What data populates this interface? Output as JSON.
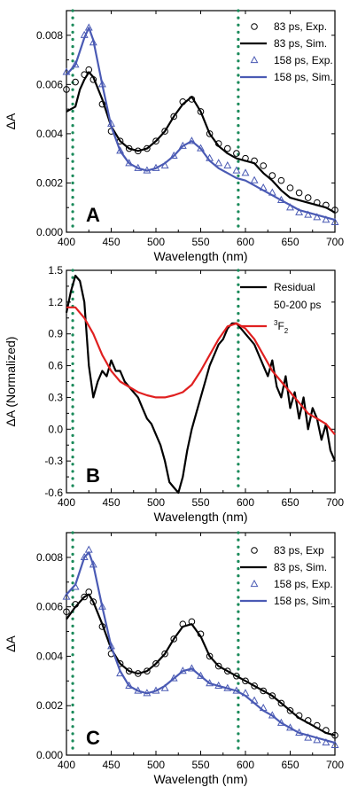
{
  "chart_data": [
    {
      "panel": "A",
      "type": "line",
      "xlabel": "Wavelength (nm)",
      "ylabel": "ΔA",
      "xlim": [
        400,
        700
      ],
      "ylim": [
        0.0,
        0.009
      ],
      "xticks": [
        400,
        450,
        500,
        550,
        600,
        650,
        700
      ],
      "xtick_labels": [
        "400",
        "450",
        "500",
        "550",
        "600",
        "650",
        "700"
      ],
      "yticks": [
        0.0,
        0.002,
        0.004,
        0.006,
        0.008
      ],
      "ytick_labels": [
        "0.000",
        "0.002",
        "0.004",
        "0.006",
        "0.008"
      ],
      "vlines": [
        407,
        592
      ],
      "legend_position": "top-right",
      "series": [
        {
          "name": "83 ps, Exp.",
          "style": "marker-circle",
          "color": "#000000",
          "x": [
            400,
            410,
            420,
            425,
            430,
            440,
            450,
            460,
            470,
            480,
            490,
            500,
            510,
            520,
            530,
            540,
            550,
            560,
            570,
            580,
            590,
            600,
            610,
            620,
            630,
            640,
            650,
            660,
            670,
            680,
            690,
            700
          ],
          "y": [
            0.0058,
            0.0061,
            0.0064,
            0.0066,
            0.0062,
            0.0052,
            0.0041,
            0.0037,
            0.0034,
            0.0033,
            0.0034,
            0.0037,
            0.0041,
            0.0047,
            0.0053,
            0.0054,
            0.0049,
            0.004,
            0.0036,
            0.0034,
            0.0032,
            0.003,
            0.0029,
            0.0027,
            0.0023,
            0.0021,
            0.0018,
            0.0016,
            0.0014,
            0.0012,
            0.0011,
            0.0009
          ]
        },
        {
          "name": "83 ps, Sim.",
          "style": "line",
          "color": "#000000",
          "x": [
            400,
            410,
            415,
            420,
            425,
            430,
            440,
            450,
            460,
            470,
            480,
            490,
            500,
            510,
            520,
            530,
            540,
            550,
            560,
            570,
            580,
            590,
            600,
            610,
            620,
            630,
            640,
            650,
            660,
            670,
            680,
            690,
            700
          ],
          "y": [
            0.0049,
            0.0051,
            0.0058,
            0.0062,
            0.0065,
            0.0063,
            0.0054,
            0.0043,
            0.0037,
            0.0034,
            0.0033,
            0.0034,
            0.0037,
            0.0041,
            0.0047,
            0.0052,
            0.0055,
            0.0049,
            0.004,
            0.0035,
            0.0032,
            0.003,
            0.0029,
            0.0028,
            0.0024,
            0.0021,
            0.0017,
            0.0014,
            0.0013,
            0.0012,
            0.0011,
            0.001,
            0.0008
          ]
        },
        {
          "name": "158 ps, Exp.",
          "style": "marker-triangle",
          "color": "#4a5ab4",
          "x": [
            400,
            410,
            420,
            425,
            430,
            440,
            450,
            460,
            470,
            480,
            490,
            500,
            510,
            520,
            530,
            540,
            550,
            560,
            570,
            580,
            590,
            600,
            610,
            620,
            630,
            640,
            650,
            660,
            670,
            680,
            690,
            700
          ],
          "y": [
            0.0065,
            0.0068,
            0.008,
            0.0083,
            0.0077,
            0.006,
            0.0044,
            0.0033,
            0.0028,
            0.0026,
            0.0025,
            0.0026,
            0.0027,
            0.0031,
            0.0035,
            0.0037,
            0.0034,
            0.003,
            0.0028,
            0.0027,
            0.0025,
            0.0024,
            0.0021,
            0.0018,
            0.0016,
            0.0013,
            0.001,
            0.0008,
            0.0007,
            0.0006,
            0.0005,
            0.0004
          ]
        },
        {
          "name": "158 ps, Sim.",
          "style": "line",
          "color": "#4a5ab4",
          "x": [
            400,
            410,
            420,
            425,
            430,
            440,
            450,
            460,
            470,
            480,
            490,
            500,
            510,
            520,
            530,
            540,
            550,
            560,
            570,
            580,
            590,
            600,
            610,
            620,
            630,
            640,
            650,
            660,
            670,
            680,
            690,
            700
          ],
          "y": [
            0.0064,
            0.0068,
            0.0079,
            0.0083,
            0.0078,
            0.006,
            0.0043,
            0.0033,
            0.0028,
            0.0026,
            0.0025,
            0.0026,
            0.0028,
            0.0031,
            0.0035,
            0.0037,
            0.0034,
            0.0029,
            0.0026,
            0.0024,
            0.0022,
            0.0021,
            0.0019,
            0.0017,
            0.0015,
            0.0013,
            0.0011,
            0.0009,
            0.0008,
            0.0007,
            0.0006,
            0.0005
          ]
        }
      ]
    },
    {
      "panel": "B",
      "type": "line",
      "xlabel": "Wavelength (nm)",
      "ylabel": "ΔA (Normalized)",
      "xlim": [
        400,
        700
      ],
      "ylim": [
        -0.6,
        1.5
      ],
      "xticks": [
        400,
        450,
        500,
        550,
        600,
        650,
        700
      ],
      "xtick_labels": [
        "400",
        "450",
        "500",
        "550",
        "600",
        "650",
        "700"
      ],
      "yticks": [
        -0.6,
        -0.3,
        0.0,
        0.3,
        0.6,
        0.9,
        1.2,
        1.5
      ],
      "ytick_labels": [
        "-0.6",
        "-0.3",
        "0.0",
        "0.3",
        "0.6",
        "0.9",
        "1.2",
        "1.5"
      ],
      "vlines": [
        407,
        592
      ],
      "legend_position": "top-right",
      "series": [
        {
          "name": "Residual 50-200 ps",
          "legend_lines": [
            "Residual",
            "50-200 ps"
          ],
          "style": "line",
          "color": "#000000",
          "x": [
            400,
            405,
            410,
            415,
            420,
            425,
            430,
            435,
            440,
            445,
            450,
            455,
            460,
            465,
            470,
            475,
            480,
            485,
            490,
            495,
            500,
            505,
            510,
            515,
            520,
            525,
            530,
            535,
            540,
            545,
            550,
            555,
            560,
            565,
            570,
            575,
            580,
            585,
            590,
            595,
            600,
            605,
            610,
            615,
            620,
            625,
            630,
            635,
            640,
            645,
            650,
            655,
            660,
            665,
            670,
            675,
            680,
            685,
            690,
            695,
            700
          ],
          "y": [
            1.1,
            1.3,
            1.45,
            1.4,
            1.2,
            0.6,
            0.3,
            0.45,
            0.55,
            0.5,
            0.65,
            0.55,
            0.55,
            0.45,
            0.4,
            0.35,
            0.3,
            0.2,
            0.1,
            0.05,
            -0.05,
            -0.15,
            -0.3,
            -0.5,
            -0.55,
            -0.6,
            -0.45,
            -0.2,
            0.0,
            0.15,
            0.3,
            0.45,
            0.6,
            0.7,
            0.8,
            0.85,
            0.95,
            1.0,
            1.0,
            0.95,
            0.9,
            0.85,
            0.8,
            0.7,
            0.6,
            0.5,
            0.65,
            0.4,
            0.3,
            0.5,
            0.2,
            0.35,
            0.1,
            0.3,
            0.0,
            0.2,
            0.1,
            -0.1,
            0.05,
            -0.2,
            -0.3
          ]
        },
        {
          "name": "3F2",
          "legend_base": "F",
          "legend_sup": "3",
          "legend_sub": "2",
          "style": "line",
          "color": "#e02020",
          "x": [
            400,
            410,
            420,
            430,
            440,
            450,
            460,
            470,
            480,
            490,
            500,
            510,
            520,
            530,
            540,
            550,
            560,
            570,
            580,
            590,
            600,
            610,
            620,
            630,
            640,
            650,
            660,
            670,
            680,
            690,
            700
          ],
          "y": [
            1.15,
            1.15,
            1.05,
            0.9,
            0.7,
            0.55,
            0.45,
            0.4,
            0.35,
            0.32,
            0.3,
            0.3,
            0.32,
            0.35,
            0.42,
            0.55,
            0.7,
            0.85,
            0.97,
            1.0,
            0.95,
            0.85,
            0.7,
            0.55,
            0.45,
            0.35,
            0.25,
            0.15,
            0.1,
            0.05,
            -0.05
          ]
        }
      ]
    },
    {
      "panel": "C",
      "type": "line",
      "xlabel": "Wavelength (nm)",
      "ylabel": "ΔA",
      "xlim": [
        400,
        700
      ],
      "ylim": [
        0.0,
        0.009
      ],
      "xticks": [
        400,
        450,
        500,
        550,
        600,
        650,
        700
      ],
      "xtick_labels": [
        "400",
        "450",
        "500",
        "550",
        "600",
        "650",
        "700"
      ],
      "yticks": [
        0.0,
        0.002,
        0.004,
        0.006,
        0.008
      ],
      "ytick_labels": [
        "0.000",
        "0.002",
        "0.004",
        "0.006",
        "0.008"
      ],
      "vlines": [
        407,
        592
      ],
      "legend_position": "top-right",
      "series": [
        {
          "name": "83 ps, Exp",
          "style": "marker-circle",
          "color": "#000000",
          "x": [
            400,
            410,
            420,
            425,
            430,
            440,
            450,
            460,
            470,
            480,
            490,
            500,
            510,
            520,
            530,
            540,
            550,
            560,
            570,
            580,
            590,
            600,
            610,
            620,
            630,
            640,
            650,
            660,
            670,
            680,
            690,
            700
          ],
          "y": [
            0.0058,
            0.0061,
            0.0064,
            0.0066,
            0.0062,
            0.0052,
            0.0041,
            0.0037,
            0.0034,
            0.0033,
            0.0034,
            0.0037,
            0.0041,
            0.0047,
            0.0053,
            0.0054,
            0.0049,
            0.004,
            0.0036,
            0.0034,
            0.0032,
            0.003,
            0.0028,
            0.0026,
            0.0024,
            0.0021,
            0.0018,
            0.0016,
            0.0014,
            0.0012,
            0.001,
            0.0008
          ]
        },
        {
          "name": "83 ps, Sim.",
          "style": "line",
          "color": "#000000",
          "x": [
            400,
            410,
            420,
            425,
            430,
            440,
            450,
            460,
            470,
            480,
            490,
            500,
            510,
            520,
            530,
            540,
            550,
            560,
            570,
            580,
            590,
            600,
            610,
            620,
            630,
            640,
            650,
            660,
            670,
            680,
            690,
            700
          ],
          "y": [
            0.0055,
            0.006,
            0.0064,
            0.0065,
            0.0062,
            0.0053,
            0.0043,
            0.0037,
            0.0034,
            0.0033,
            0.0034,
            0.0037,
            0.0041,
            0.0047,
            0.0052,
            0.0053,
            0.0048,
            0.004,
            0.0036,
            0.0034,
            0.0032,
            0.003,
            0.0028,
            0.0026,
            0.0024,
            0.0021,
            0.0018,
            0.0015,
            0.0013,
            0.0011,
            0.0009,
            0.0008
          ]
        },
        {
          "name": "158 ps, Exp.",
          "style": "marker-triangle",
          "color": "#4a5ab4",
          "x": [
            400,
            410,
            420,
            425,
            430,
            440,
            450,
            460,
            470,
            480,
            490,
            500,
            510,
            520,
            530,
            540,
            550,
            560,
            570,
            580,
            590,
            600,
            610,
            620,
            630,
            640,
            650,
            660,
            670,
            680,
            690,
            700
          ],
          "y": [
            0.0064,
            0.0068,
            0.008,
            0.0083,
            0.0077,
            0.006,
            0.0044,
            0.0033,
            0.0028,
            0.0026,
            0.0025,
            0.0026,
            0.0027,
            0.0031,
            0.0034,
            0.0035,
            0.0032,
            0.0029,
            0.0028,
            0.0027,
            0.0026,
            0.0025,
            0.0022,
            0.0019,
            0.0016,
            0.0013,
            0.0011,
            0.0009,
            0.0007,
            0.0006,
            0.0005,
            0.0004
          ]
        },
        {
          "name": "158 ps, Sim.",
          "style": "line",
          "color": "#4a5ab4",
          "x": [
            400,
            410,
            420,
            425,
            430,
            440,
            450,
            460,
            470,
            480,
            490,
            500,
            510,
            520,
            530,
            540,
            550,
            560,
            570,
            580,
            590,
            600,
            610,
            620,
            630,
            640,
            650,
            660,
            670,
            680,
            690,
            700
          ],
          "y": [
            0.0065,
            0.0069,
            0.008,
            0.0082,
            0.0077,
            0.006,
            0.0044,
            0.0034,
            0.0028,
            0.0026,
            0.0025,
            0.0026,
            0.0028,
            0.0031,
            0.0034,
            0.0035,
            0.0032,
            0.0029,
            0.0028,
            0.0027,
            0.0026,
            0.0024,
            0.0021,
            0.0018,
            0.0016,
            0.0013,
            0.0011,
            0.0009,
            0.0008,
            0.0007,
            0.0006,
            0.0005
          ]
        }
      ]
    }
  ],
  "colors": {
    "vline": "#1a8a5a",
    "black": "#000000",
    "blue": "#4a5ab4",
    "red": "#e02020"
  }
}
